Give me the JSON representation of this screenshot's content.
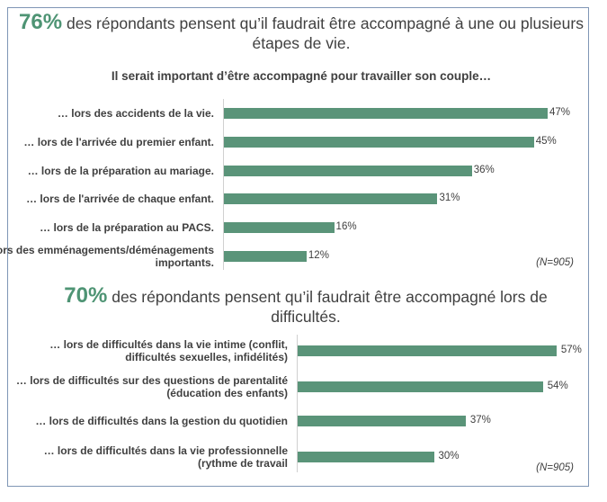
{
  "colors": {
    "bar": "#5a9479",
    "highlight": "#4e9474",
    "frame": "#7f96b5"
  },
  "chart_data": [
    {
      "type": "bar",
      "orientation": "horizontal",
      "headline_pct": "76%",
      "headline_text": "des répondants pensent qu’il faudrait être accompagné à une ou plusieurs étapes de vie.",
      "title": "Il serait important d’être accompagné pour travailler son couple…",
      "categories": [
        "… lors des accidents de la vie.",
        "… lors de l'arrivée du premier enfant.",
        "… lors de la préparation au mariage.",
        "… lors de l'arrivée de chaque enfant.",
        "… lors de la préparation au PACS.",
        "… lors des emménagements/déménagements importants."
      ],
      "values": [
        47,
        45,
        36,
        31,
        16,
        12
      ],
      "data_labels": [
        "47%",
        "45%",
        "36%",
        "31%",
        "16%",
        "12%"
      ],
      "note": "(N=905)"
    },
    {
      "type": "bar",
      "orientation": "horizontal",
      "headline_pct": "70%",
      "headline_text": "des répondants pensent qu’il faudrait être accompagné lors de difficultés.",
      "categories": [
        "… lors de difficultés dans la vie intime (conflit, difficultés sexuelles, infidélités)",
        "… lors de difficultés sur des questions de parentalité (éducation des enfants)",
        "… lors de difficultés dans la gestion du quotidien",
        "… lors de difficultés dans la vie professionnelle (rythme de travail"
      ],
      "values": [
        57,
        54,
        37,
        30
      ],
      "data_labels": [
        "57%",
        "54%",
        "37%",
        "30%"
      ],
      "note": "(N=905)"
    }
  ]
}
